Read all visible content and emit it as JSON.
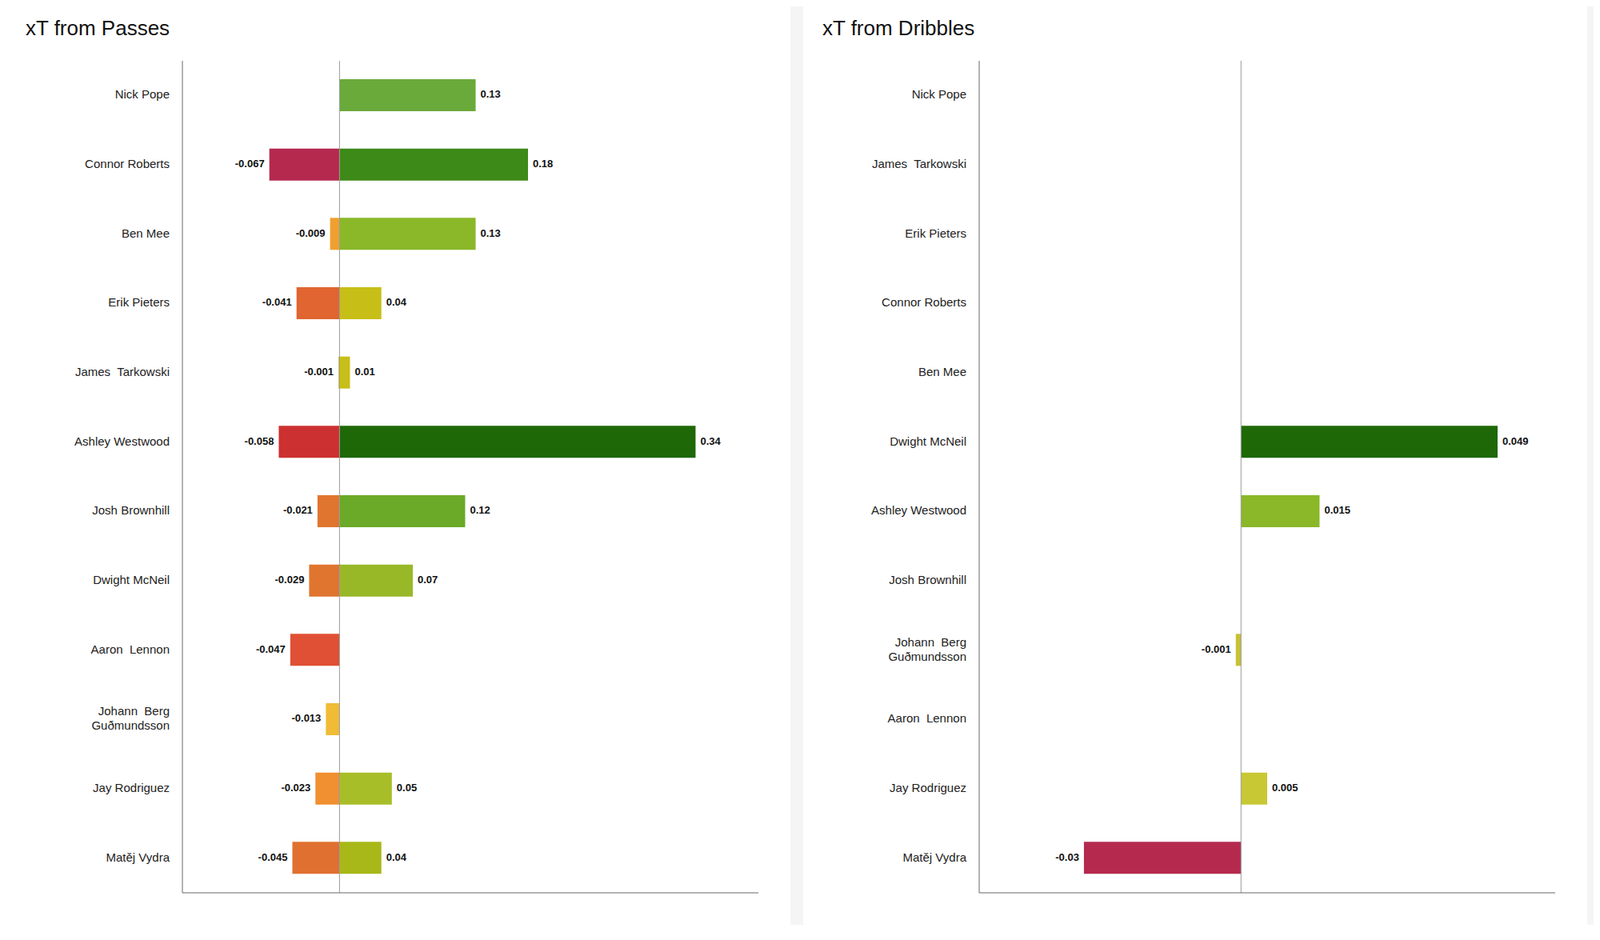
{
  "chart_data": [
    {
      "type": "bar",
      "title": "xT from Passes",
      "orientation": "horizontal",
      "stacked": true,
      "data_labels": true,
      "tick_labels": "y",
      "categories": [
        "Nick Pope",
        "Connor Roberts",
        "Ben Mee",
        "Erik Pieters",
        "James  Tarkowski",
        "Ashley Westwood",
        "Josh Brownhill",
        "Dwight McNeil",
        "Aaron  Lennon",
        "Johann  Berg\nGuðmundsson",
        "Jay Rodriguez",
        "Matěj Vydra"
      ],
      "xlim": [
        -0.15,
        0.4
      ],
      "series": [
        {
          "values": [
            0,
            -0.067,
            -0.009,
            -0.041,
            -0.001,
            -0.058,
            -0.021,
            -0.029,
            -0.047,
            -0.013,
            -0.023,
            -0.045
          ],
          "colors": [
            "#aaaaaa",
            "#b5294e",
            "#f0a030",
            "#e06530",
            "#d4c535",
            "#cc3030",
            "#e07530",
            "#e07530",
            "#e05035",
            "#f0bc35",
            "#f09030",
            "#e07030"
          ]
        },
        {
          "values": [
            0.13,
            0.18,
            0.13,
            0.04,
            0.01,
            0.34,
            0.12,
            0.07,
            0.0,
            0.0,
            0.05,
            0.04
          ],
          "colors": [
            "#6aaa3a",
            "#3d8a18",
            "#8ab828",
            "#c8be18",
            "#c8be18",
            "#1e6808",
            "#6aaa28",
            "#98b828",
            "#aaaaaa",
            "#aaaaaa",
            "#a8be28",
            "#a8b818"
          ]
        }
      ]
    },
    {
      "type": "bar",
      "title": "xT from Dribbles",
      "orientation": "horizontal",
      "stacked": true,
      "data_labels": true,
      "tick_labels": "y",
      "categories": [
        "Nick Pope",
        "James  Tarkowski",
        "Erik Pieters",
        "Connor Roberts",
        "Ben Mee",
        "Dwight McNeil",
        "Ashley Westwood",
        "Josh Brownhill",
        "Johann  Berg\nGuðmundsson",
        "Aaron  Lennon",
        "Jay Rodriguez",
        "Matěj Vydra"
      ],
      "xlim": [
        -0.05,
        0.06
      ],
      "series": [
        {
          "values": [
            0,
            0,
            0,
            0,
            0,
            0,
            0,
            0,
            -0.001,
            0,
            0,
            -0.03
          ],
          "colors": [
            "#aaaaaa",
            "#aaaaaa",
            "#aaaaaa",
            "#aaaaaa",
            "#aaaaaa",
            "#aaaaaa",
            "#aaaaaa",
            "#aaaaaa",
            "#c8c035",
            "#aaaaaa",
            "#aaaaaa",
            "#b5294e"
          ]
        },
        {
          "values": [
            0,
            0,
            0,
            0,
            0,
            0.049,
            0.015,
            0,
            0,
            0,
            0.005,
            0
          ],
          "colors": [
            "#aaaaaa",
            "#aaaaaa",
            "#aaaaaa",
            "#aaaaaa",
            "#aaaaaa",
            "#1e6808",
            "#8ab828",
            "#aaaaaa",
            "#aaaaaa",
            "#aaaaaa",
            "#c8c835",
            "#aaaaaa"
          ]
        }
      ]
    }
  ]
}
